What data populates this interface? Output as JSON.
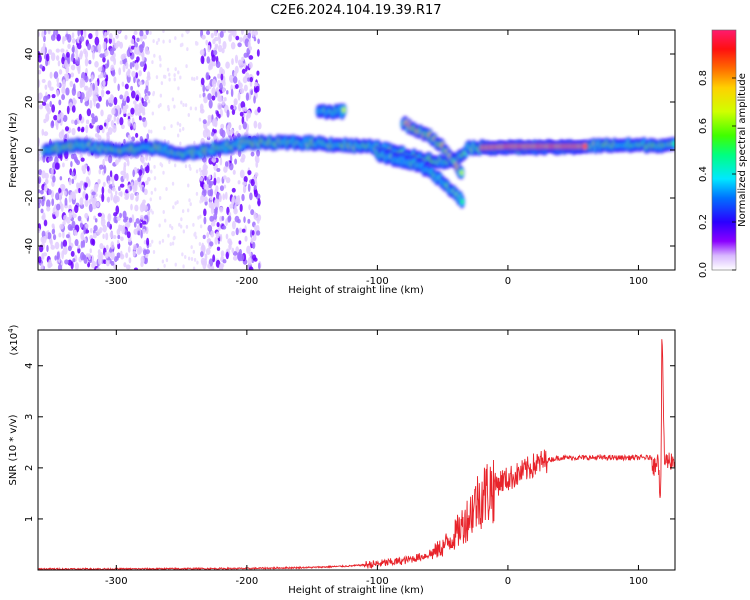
{
  "title": "C2E6.2024.104.19.39.R17",
  "chart_data": [
    {
      "type": "heatmap",
      "name": "spectrogram",
      "xlabel": "Height of straight line (km)",
      "ylabel": "Frequency (Hz)",
      "xlim": [
        -360,
        128
      ],
      "ylim": [
        -50,
        50
      ],
      "xticks": [
        -300,
        -200,
        -100,
        0,
        100
      ],
      "yticks": [
        -40,
        -20,
        0,
        20,
        40
      ],
      "colorbar": {
        "label": "Normalized spectral amplitude",
        "range": [
          0,
          1
        ],
        "ticks": [
          0.0,
          0.2,
          0.4,
          0.6,
          0.8
        ],
        "tick_labels": [
          "0.0",
          "0.2",
          "0.4",
          "0.6",
          "0.8"
        ],
        "colormap": [
          "#ffffff",
          "#8a00ff",
          "#2a00ff",
          "#0070ff",
          "#00e8ff",
          "#00ff80",
          "#40ff00",
          "#d0ff00",
          "#ffd000",
          "#ff6a00",
          "#ff1010",
          "#ff1a6e"
        ]
      },
      "features": [
        {
          "name": "noisy scatter region",
          "x_range": [
            -360,
            -275
          ],
          "freq_range": [
            -50,
            50
          ],
          "level": 0.15
        },
        {
          "name": "noisy scatter region",
          "x_range": [
            -235,
            -190
          ],
          "freq_range": [
            -50,
            50
          ],
          "level": 0.15
        },
        {
          "name": "main ridge",
          "points": [
            [
              -355,
              0
            ],
            [
              -330,
              2
            ],
            [
              -300,
              0
            ],
            [
              -270,
              1
            ],
            [
              -250,
              -2
            ],
            [
              -230,
              0
            ],
            [
              -200,
              3
            ],
            [
              -150,
              3
            ],
            [
              -100,
              1
            ],
            [
              -70,
              -3
            ],
            [
              -50,
              -5
            ],
            [
              -40,
              -4
            ],
            [
              -30,
              1
            ],
            [
              0,
              1
            ],
            [
              40,
              1
            ],
            [
              80,
              2
            ],
            [
              128,
              2
            ]
          ],
          "level": 0.6
        },
        {
          "name": "upper branch",
          "points": [
            [
              -80,
              11
            ],
            [
              -60,
              6
            ],
            [
              -48,
              0
            ],
            [
              -40,
              -6
            ],
            [
              -35,
              -10
            ]
          ],
          "level": 0.7
        },
        {
          "name": "lower branch",
          "points": [
            [
              -100,
              -2
            ],
            [
              -70,
              -6
            ],
            [
              -55,
              -11
            ],
            [
              -45,
              -16
            ],
            [
              -35,
              -21
            ]
          ],
          "level": 0.5
        },
        {
          "name": "isolated blob",
          "points": [
            [
              -145,
              16
            ],
            [
              -125,
              16
            ]
          ],
          "level": 0.5
        },
        {
          "name": "strong band",
          "points": [
            [
              -20,
              1
            ],
            [
              0,
              1.5
            ],
            [
              60,
              1.5
            ]
          ],
          "level": 0.95
        }
      ]
    },
    {
      "type": "line",
      "name": "snr",
      "xlabel": "Height of straight line (km)",
      "ylabel": "SNR (10 * v/v)",
      "scale_label": "(x10",
      "scale_exponent": "4",
      "scale_suffix": ")",
      "xlim": [
        -360,
        128
      ],
      "ylim": [
        0,
        4.7
      ],
      "xticks": [
        -300,
        -200,
        -100,
        0,
        100
      ],
      "yticks": [
        1,
        2,
        3,
        4
      ],
      "color": "#e8232a",
      "x": [
        -360,
        -300,
        -200,
        -150,
        -120,
        -100,
        -80,
        -60,
        -50,
        -40,
        -30,
        -25,
        -20,
        -15,
        -10,
        -5,
        0,
        10,
        20,
        30,
        40,
        50,
        60,
        80,
        100,
        110,
        112,
        115,
        117,
        118,
        120,
        122,
        125,
        128
      ],
      "y": [
        0.02,
        0.02,
        0.03,
        0.05,
        0.08,
        0.12,
        0.18,
        0.3,
        0.45,
        0.7,
        1.05,
        1.3,
        1.45,
        1.55,
        1.65,
        1.75,
        1.78,
        1.9,
        2.05,
        2.15,
        2.2,
        2.2,
        2.2,
        2.2,
        2.2,
        2.2,
        2.0,
        2.3,
        1.2,
        4.7,
        2.1,
        2.15,
        2.15,
        2.15
      ]
    }
  ]
}
